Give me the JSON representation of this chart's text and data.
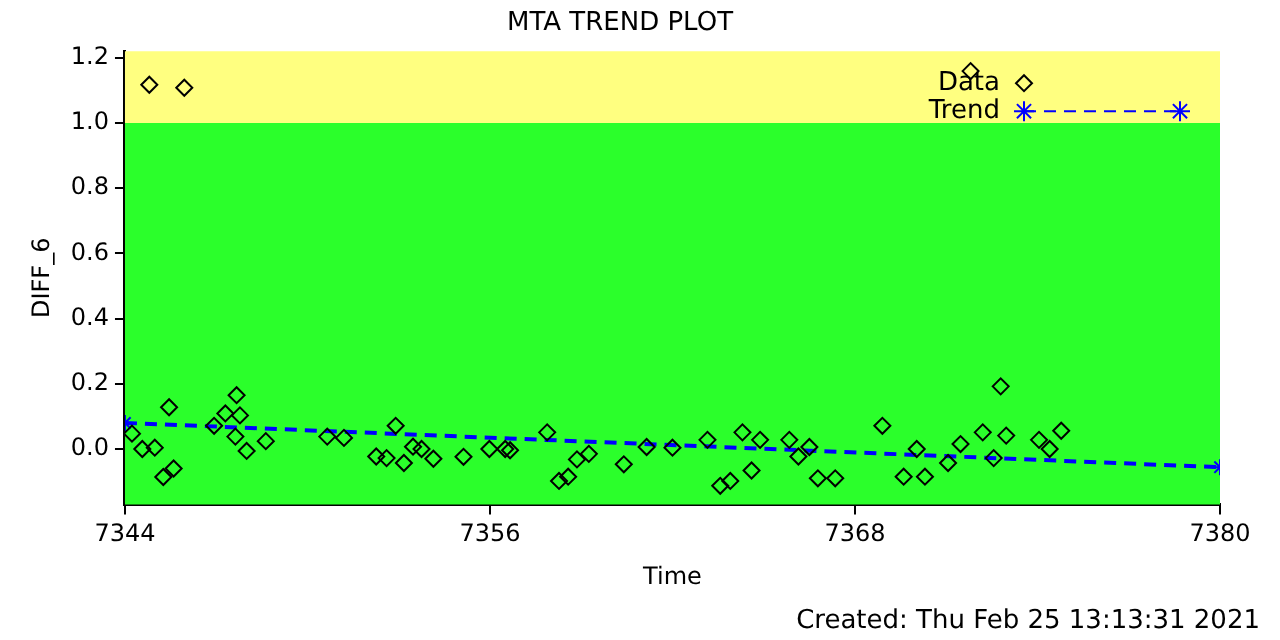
{
  "chart_data": {
    "type": "scatter",
    "title": "MTA TREND PLOT",
    "xlabel": "Time",
    "ylabel": "DIFF_6",
    "annotations": [
      "Created: Thu Feb 25 13:13:31 2021"
    ],
    "xlim": [
      7344,
      7380
    ],
    "xticks": [
      7344,
      7356,
      7368,
      7380
    ],
    "ylim": [
      -0.17,
      1.22
    ],
    "yticks": [
      {
        "value": 0,
        "label": "0.0"
      },
      {
        "value": 0.2,
        "label": "0.2"
      },
      {
        "value": 0.4,
        "label": "0.4"
      },
      {
        "value": 0.6,
        "label": "0.6"
      },
      {
        "value": 0.8,
        "label": "0.8"
      },
      {
        "value": 1,
        "label": "1.0"
      },
      {
        "value": 1.2,
        "label": "1.2"
      }
    ],
    "grid": false,
    "legend": "top right",
    "marker": "diamond",
    "bands": [
      {
        "axis": "y",
        "from": 1.0,
        "to": 1.22,
        "color": "#ffff80"
      },
      {
        "axis": "y",
        "from": -0.17,
        "to": 1.0,
        "color": "#2bff2b"
      }
    ],
    "series": [
      {
        "name": "Data",
        "color": "#000000",
        "x": [
          7344.8,
          7345.95,
          7344.23,
          7344.57,
          7344.98,
          7345.45,
          7345.26,
          7345.6,
          7346.93,
          7347.3,
          7347.67,
          7347.63,
          7347.78,
          7348.0,
          7348.63,
          7350.65,
          7351.2,
          7352.26,
          7352.6,
          7352.9,
          7353.17,
          7353.47,
          7353.75,
          7354.14,
          7355.13,
          7355.98,
          7356.5,
          7356.66,
          7357.88,
          7358.27,
          7358.57,
          7358.86,
          7359.25,
          7360.4,
          7361.15,
          7362.0,
          7363.15,
          7363.57,
          7363.9,
          7364.3,
          7364.6,
          7364.88,
          7365.84,
          7366.14,
          7366.5,
          7366.78,
          7367.35,
          7368.9,
          7369.6,
          7370.03,
          7370.3,
          7371.06,
          7371.47,
          7371.8,
          7372.2,
          7372.56,
          7372.79,
          7372.97,
          7374.05,
          7374.4,
          7374.78
        ],
        "values": [
          1.117,
          1.108,
          0.047,
          0.0,
          0.004,
          0.128,
          -0.086,
          -0.06,
          0.071,
          0.109,
          0.165,
          0.038,
          0.103,
          -0.006,
          0.024,
          0.038,
          0.034,
          -0.023,
          -0.028,
          0.071,
          -0.043,
          0.007,
          0.0,
          -0.03,
          -0.024,
          0.0,
          0.0,
          -0.004,
          0.051,
          -0.098,
          -0.085,
          -0.032,
          -0.015,
          -0.047,
          0.006,
          0.004,
          0.028,
          -0.113,
          -0.098,
          0.051,
          -0.066,
          0.028,
          0.028,
          -0.023,
          0.006,
          -0.09,
          -0.09,
          0.071,
          -0.085,
          0.0,
          -0.085,
          -0.043,
          0.015,
          1.159,
          0.051,
          -0.028,
          0.192,
          0.041,
          0.028,
          0.0,
          0.056
        ]
      },
      {
        "name": "Trend",
        "type": "line",
        "color": "#0000ff",
        "line_style": "dashed",
        "marker": "cross",
        "x": [
          7344,
          7380
        ],
        "values": [
          0.08,
          -0.056
        ]
      }
    ]
  }
}
